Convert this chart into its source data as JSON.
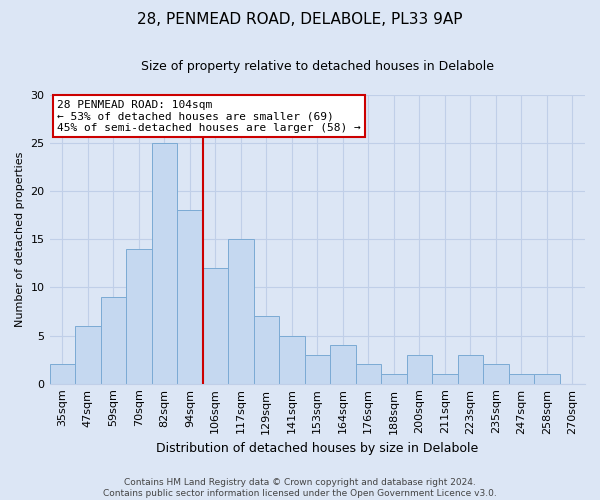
{
  "title": "28, PENMEAD ROAD, DELABOLE, PL33 9AP",
  "subtitle": "Size of property relative to detached houses in Delabole",
  "xlabel": "Distribution of detached houses by size in Delabole",
  "ylabel": "Number of detached properties",
  "bin_labels": [
    "35sqm",
    "47sqm",
    "59sqm",
    "70sqm",
    "82sqm",
    "94sqm",
    "106sqm",
    "117sqm",
    "129sqm",
    "141sqm",
    "153sqm",
    "164sqm",
    "176sqm",
    "188sqm",
    "200sqm",
    "211sqm",
    "223sqm",
    "235sqm",
    "247sqm",
    "258sqm",
    "270sqm"
  ],
  "bar_heights": [
    2,
    6,
    9,
    14,
    25,
    18,
    12,
    15,
    7,
    5,
    3,
    4,
    2,
    1,
    3,
    1,
    3,
    2,
    1,
    1,
    0
  ],
  "bar_color": "#c5d8f0",
  "bar_edge_color": "#7baad4",
  "property_line_color": "#cc0000",
  "property_line_index": 6,
  "ylim": [
    0,
    30
  ],
  "yticks": [
    0,
    5,
    10,
    15,
    20,
    25,
    30
  ],
  "annotation_title": "28 PENMEAD ROAD: 104sqm",
  "annotation_line1": "← 53% of detached houses are smaller (69)",
  "annotation_line2": "45% of semi-detached houses are larger (58) →",
  "annotation_box_color": "#ffffff",
  "annotation_box_edge": "#cc0000",
  "footer1": "Contains HM Land Registry data © Crown copyright and database right 2024.",
  "footer2": "Contains public sector information licensed under the Open Government Licence v3.0.",
  "background_color": "#dce6f5",
  "plot_background": "#dce6f5",
  "grid_color": "#c0cfe8",
  "title_fontsize": 11,
  "subtitle_fontsize": 9,
  "ylabel_fontsize": 8,
  "xlabel_fontsize": 9,
  "tick_fontsize": 8,
  "annotation_fontsize": 8,
  "footer_fontsize": 6.5
}
